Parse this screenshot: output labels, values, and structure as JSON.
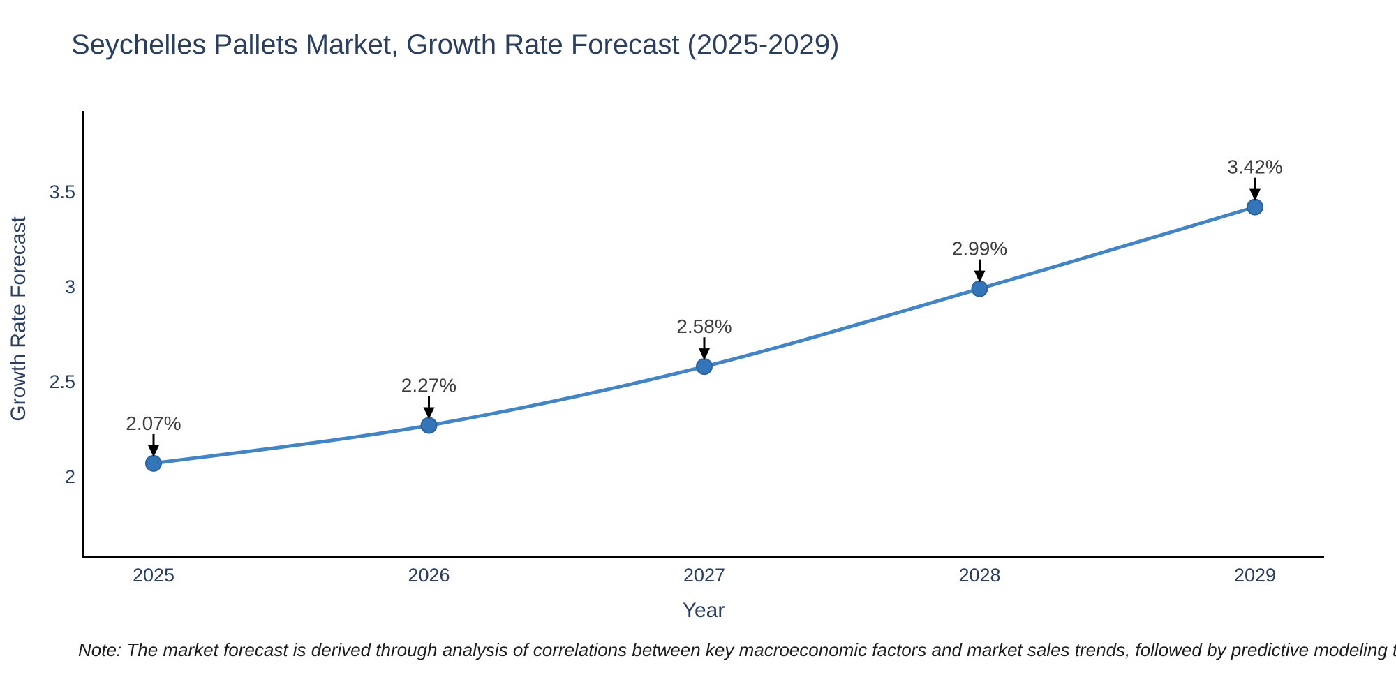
{
  "note": "Note: The market forecast is derived through analysis of correlations between key macroeconomic factors and market sales trends, followed by predictive modeling to project future sales",
  "chart_data": {
    "type": "line",
    "title": "Seychelles Pallets Market, Growth Rate Forecast (2025-2029)",
    "xlabel": "Year",
    "ylabel": "Growth Rate Forecast",
    "x": [
      2025,
      2026,
      2027,
      2028,
      2029
    ],
    "values": [
      2.07,
      2.27,
      2.58,
      2.99,
      3.42
    ],
    "point_labels": [
      "2.07%",
      "2.27%",
      "2.58%",
      "2.99%",
      "3.42%"
    ],
    "xtick_labels": [
      "2025",
      "2026",
      "2027",
      "2028",
      "2029"
    ],
    "yticks": [
      2,
      2.5,
      3,
      3.5
    ],
    "ytick_labels": [
      "2",
      "2.5",
      "3",
      "3.5"
    ],
    "xlim": [
      2024.744,
      2029.251
    ],
    "ylim": [
      1.577,
      3.926
    ],
    "grid": false,
    "legend": false,
    "colors": {
      "line": "#4384c4",
      "marker": "#3375b8",
      "marker_edge": "#2b639c",
      "annotation": "#3d3d3d",
      "arrow": "#000000",
      "text": "#2a3f5f",
      "axis": "#000000"
    }
  }
}
